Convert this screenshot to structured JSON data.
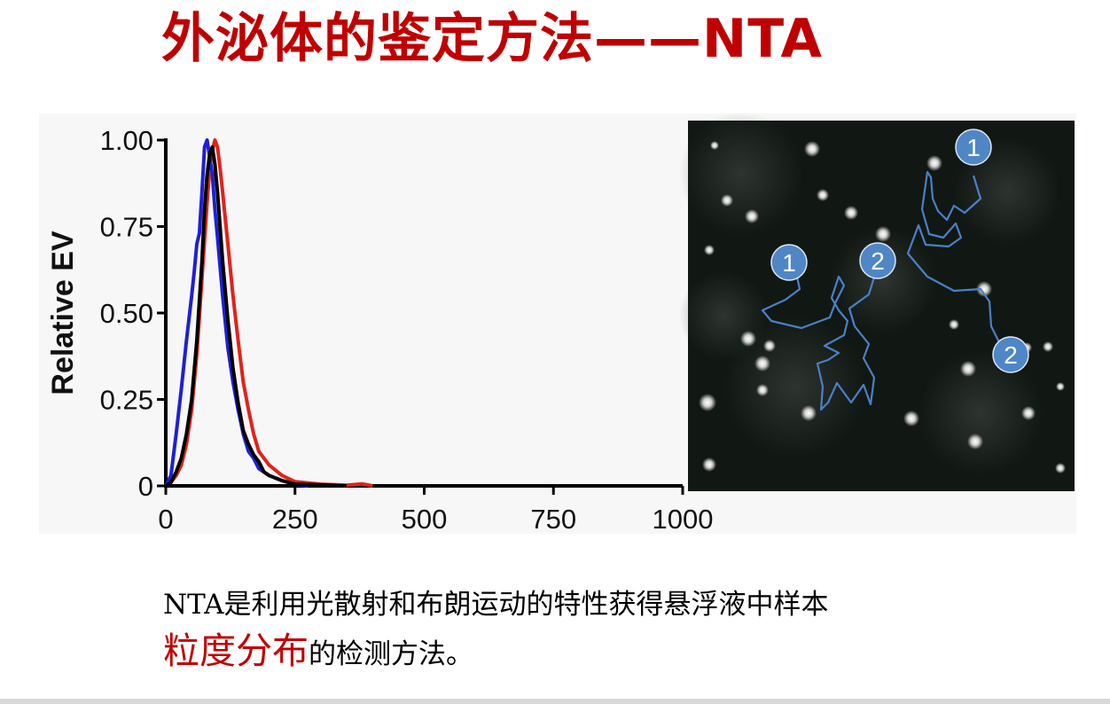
{
  "slide": {
    "title": "外泌体的鉴定方法——NTA",
    "caption_line1": "NTA是利用光散射和布朗运动的特性获得悬浮液中样本",
    "caption_highlight": "粒度分布",
    "caption_rest": "的检测方法。",
    "title_color": "#c00000",
    "highlight_color": "#c00000"
  },
  "chart_data": {
    "type": "line",
    "title": "",
    "xlabel": "",
    "ylabel": "Relative EV",
    "xlim": [
      0,
      1000
    ],
    "ylim": [
      0,
      1.0
    ],
    "xticks": [
      "0",
      "250",
      "500",
      "750",
      "1000"
    ],
    "yticks": [
      "0",
      "0.25",
      "0.50",
      "0.75",
      "1.00"
    ],
    "grid": false,
    "legend": "none",
    "series": [
      {
        "color": "#1f1fd6",
        "points": [
          [
            0,
            0
          ],
          [
            10,
            0.03
          ],
          [
            20,
            0.15
          ],
          [
            30,
            0.28
          ],
          [
            40,
            0.42
          ],
          [
            50,
            0.55
          ],
          [
            55,
            0.62
          ],
          [
            60,
            0.7
          ],
          [
            65,
            0.73
          ],
          [
            70,
            0.85
          ],
          [
            75,
            0.98
          ],
          [
            80,
            1.0
          ],
          [
            85,
            0.95
          ],
          [
            90,
            0.9
          ],
          [
            95,
            0.8
          ],
          [
            100,
            0.72
          ],
          [
            110,
            0.55
          ],
          [
            120,
            0.4
          ],
          [
            130,
            0.3
          ],
          [
            140,
            0.22
          ],
          [
            150,
            0.15
          ],
          [
            160,
            0.1
          ],
          [
            170,
            0.08
          ],
          [
            180,
            0.05
          ],
          [
            200,
            0.03
          ],
          [
            225,
            0.015
          ],
          [
            250,
            0.005
          ],
          [
            275,
            0.0
          ]
        ]
      },
      {
        "color": "#e0231b",
        "points": [
          [
            0,
            0
          ],
          [
            10,
            0.01
          ],
          [
            20,
            0.03
          ],
          [
            30,
            0.06
          ],
          [
            40,
            0.12
          ],
          [
            50,
            0.22
          ],
          [
            60,
            0.38
          ],
          [
            70,
            0.6
          ],
          [
            80,
            0.82
          ],
          [
            85,
            0.92
          ],
          [
            90,
            0.97
          ],
          [
            95,
            1.0
          ],
          [
            100,
            0.98
          ],
          [
            105,
            0.92
          ],
          [
            110,
            0.85
          ],
          [
            120,
            0.7
          ],
          [
            130,
            0.55
          ],
          [
            140,
            0.42
          ],
          [
            150,
            0.3
          ],
          [
            160,
            0.22
          ],
          [
            170,
            0.15
          ],
          [
            180,
            0.1
          ],
          [
            200,
            0.06
          ],
          [
            225,
            0.03
          ],
          [
            250,
            0.012
          ],
          [
            300,
            0.005
          ],
          [
            350,
            0.002
          ],
          [
            380,
            0.006
          ],
          [
            400,
            0.0
          ]
        ]
      },
      {
        "color": "#000000",
        "points": [
          [
            0,
            0
          ],
          [
            10,
            0.01
          ],
          [
            20,
            0.04
          ],
          [
            30,
            0.08
          ],
          [
            40,
            0.15
          ],
          [
            50,
            0.25
          ],
          [
            60,
            0.42
          ],
          [
            70,
            0.65
          ],
          [
            75,
            0.8
          ],
          [
            80,
            0.9
          ],
          [
            85,
            0.96
          ],
          [
            90,
            0.98
          ],
          [
            95,
            0.93
          ],
          [
            100,
            0.85
          ],
          [
            110,
            0.65
          ],
          [
            120,
            0.48
          ],
          [
            130,
            0.34
          ],
          [
            140,
            0.24
          ],
          [
            150,
            0.16
          ],
          [
            160,
            0.12
          ],
          [
            170,
            0.09
          ],
          [
            180,
            0.07
          ],
          [
            190,
            0.04
          ],
          [
            200,
            0.03
          ],
          [
            225,
            0.015
          ],
          [
            250,
            0.005
          ],
          [
            300,
            0.003
          ],
          [
            350,
            0.0
          ]
        ]
      }
    ]
  },
  "tracking_image": {
    "background": "#111813",
    "track_color": "#4a80c8",
    "marker_color": "#4f86c6",
    "markers": [
      {
        "label": "1"
      },
      {
        "label": "2"
      },
      {
        "label": "1"
      },
      {
        "label": "2"
      }
    ]
  }
}
